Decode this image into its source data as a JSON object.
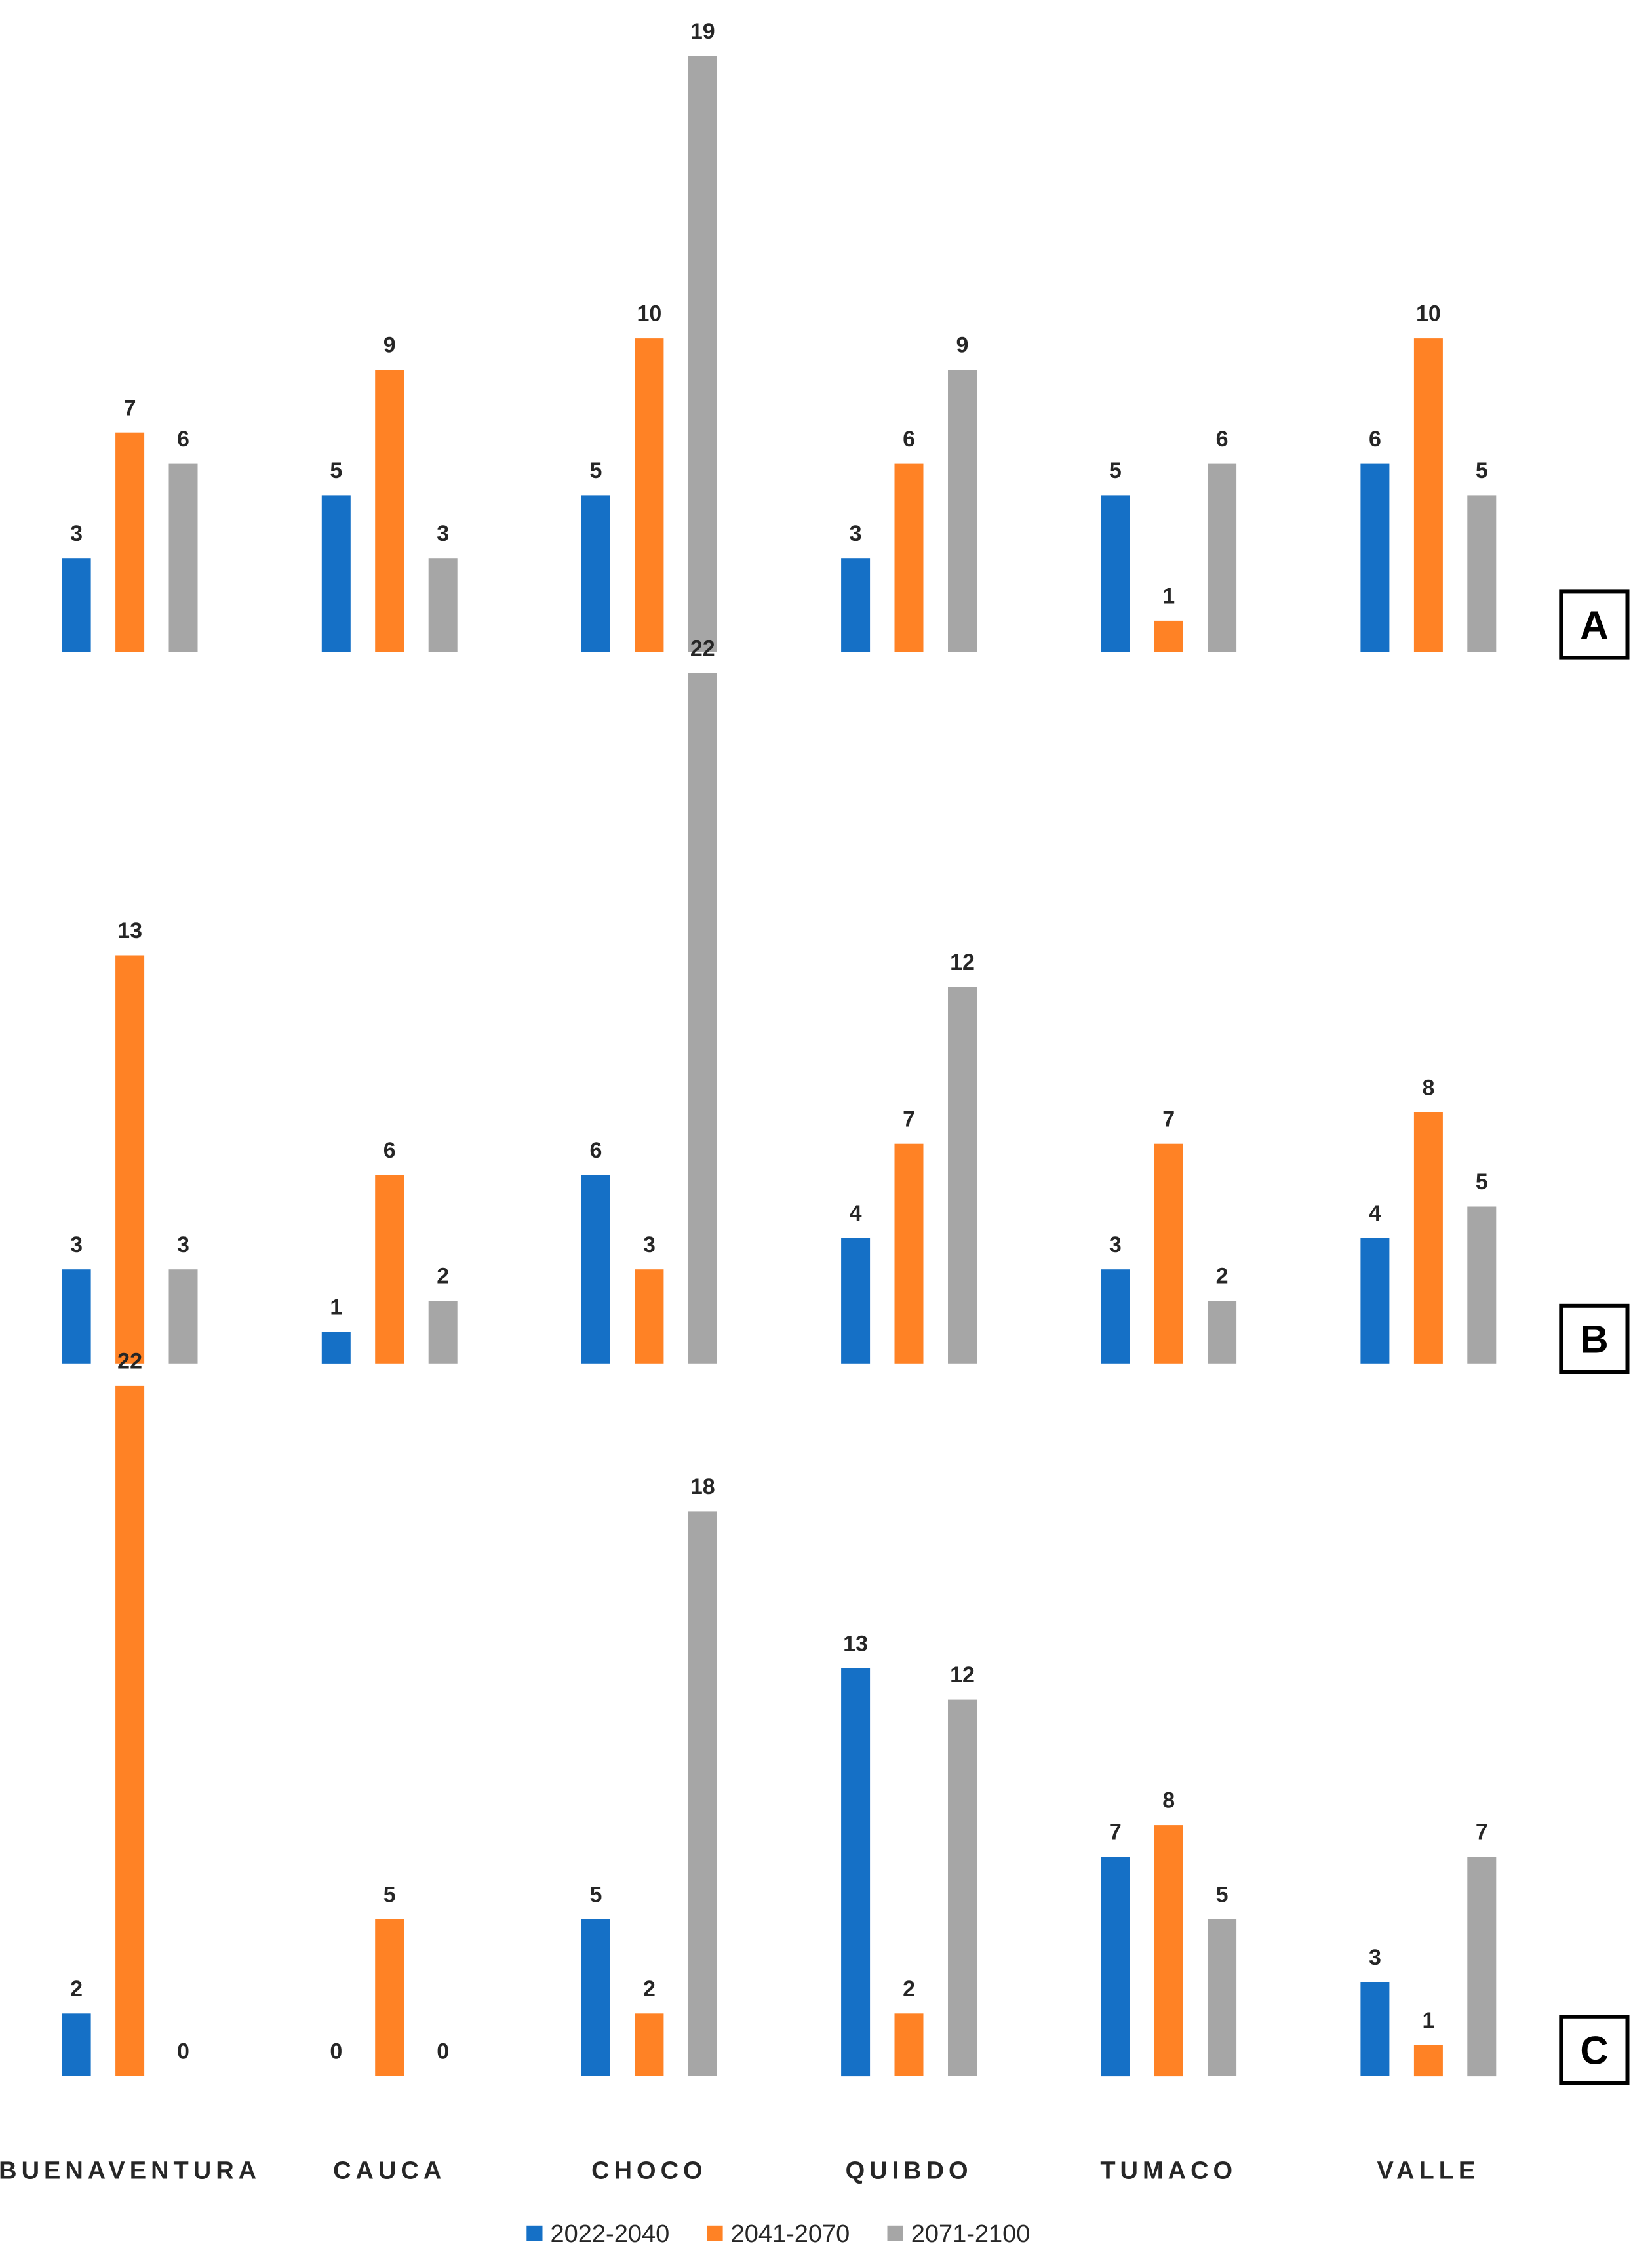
{
  "chart_data": {
    "type": "bar",
    "categories": [
      "BUENAVENTURA",
      "CAUCA",
      "CHOCO",
      "QUIBDO",
      "TUMACO",
      "VALLE"
    ],
    "legend_position": "bottom",
    "grid": false,
    "series_meta": [
      {
        "name": "2022-2040",
        "color": "#1570C6"
      },
      {
        "name": "2041-2070",
        "color": "#FF8225"
      },
      {
        "name": "2071-2100",
        "color": "#A6A6A6"
      }
    ],
    "panels": [
      {
        "label": "A",
        "series": [
          {
            "name": "2022-2040",
            "values": [
              3,
              5,
              5,
              3,
              5,
              6
            ]
          },
          {
            "name": "2041-2070",
            "values": [
              7,
              9,
              10,
              6,
              1,
              10
            ]
          },
          {
            "name": "2071-2100",
            "values": [
              6,
              3,
              19,
              9,
              6,
              5
            ]
          }
        ]
      },
      {
        "label": "B",
        "series": [
          {
            "name": "2022-2040",
            "values": [
              3,
              1,
              6,
              4,
              3,
              4
            ]
          },
          {
            "name": "2041-2070",
            "values": [
              13,
              6,
              3,
              7,
              7,
              8
            ]
          },
          {
            "name": "2071-2100",
            "values": [
              3,
              2,
              22,
              12,
              2,
              5
            ]
          }
        ]
      },
      {
        "label": "C",
        "series": [
          {
            "name": "2022-2040",
            "values": [
              2,
              0,
              5,
              13,
              7,
              3
            ]
          },
          {
            "name": "2041-2070",
            "values": [
              22,
              5,
              2,
              2,
              8,
              1
            ]
          },
          {
            "name": "2071-2100",
            "values": [
              0,
              0,
              18,
              12,
              5,
              7
            ]
          }
        ]
      }
    ]
  }
}
